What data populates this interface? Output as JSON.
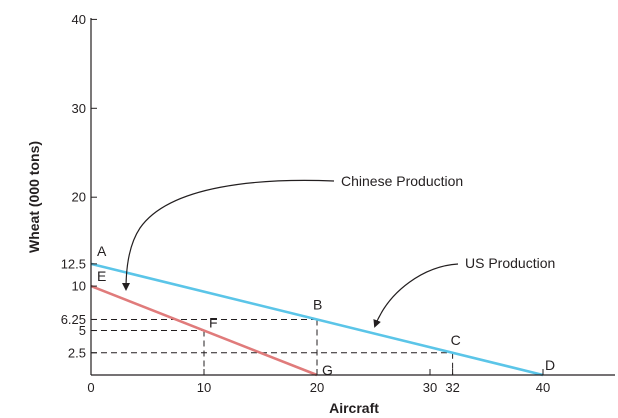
{
  "chart_data": {
    "type": "line",
    "xlabel": "Aircraft",
    "ylabel": "Wheat (000 tons)",
    "xlim": [
      0,
      46
    ],
    "ylim": [
      0,
      41
    ],
    "x_ticks": [
      {
        "value": 0,
        "label": "0"
      },
      {
        "value": 10,
        "label": "10"
      },
      {
        "value": 20,
        "label": "20"
      },
      {
        "value": 30,
        "label": "30"
      },
      {
        "value": 32,
        "label": "32"
      },
      {
        "value": 40,
        "label": "40"
      }
    ],
    "y_ticks": [
      {
        "value": 2.5,
        "label": "2.5"
      },
      {
        "value": 5,
        "label": "5"
      },
      {
        "value": 6.25,
        "label": "6.25"
      },
      {
        "value": 10,
        "label": "10"
      },
      {
        "value": 12.5,
        "label": "12.5"
      },
      {
        "value": 20,
        "label": "20"
      },
      {
        "value": 30,
        "label": "30"
      },
      {
        "value": 40,
        "label": "40"
      }
    ],
    "series": [
      {
        "name": "US Production",
        "color": "#5bc5e8",
        "x": [
          0,
          40
        ],
        "y": [
          12.5,
          0
        ]
      },
      {
        "name": "Chinese Production",
        "color": "#e07b7b",
        "x": [
          0,
          20
        ],
        "y": [
          10,
          0
        ]
      }
    ],
    "points": [
      {
        "label": "A",
        "x": 0,
        "y": 12.5
      },
      {
        "label": "B",
        "x": 20,
        "y": 6.25
      },
      {
        "label": "C",
        "x": 32,
        "y": 2.5
      },
      {
        "label": "D",
        "x": 40,
        "y": 0
      },
      {
        "label": "E",
        "x": 0,
        "y": 10
      },
      {
        "label": "F",
        "x": 10,
        "y": 5
      },
      {
        "label": "G",
        "x": 20,
        "y": 0
      }
    ],
    "guides": [
      {
        "x": 20,
        "y": 6.25
      },
      {
        "x": 10,
        "y": 5
      },
      {
        "x": 32,
        "y": 2.5
      }
    ],
    "annotations": [
      {
        "text": "Chinese Production",
        "points_to": [
          3,
          8.5
        ]
      },
      {
        "text": "US Production",
        "points_to": [
          25.5,
          4.6
        ]
      }
    ],
    "grid": false
  }
}
